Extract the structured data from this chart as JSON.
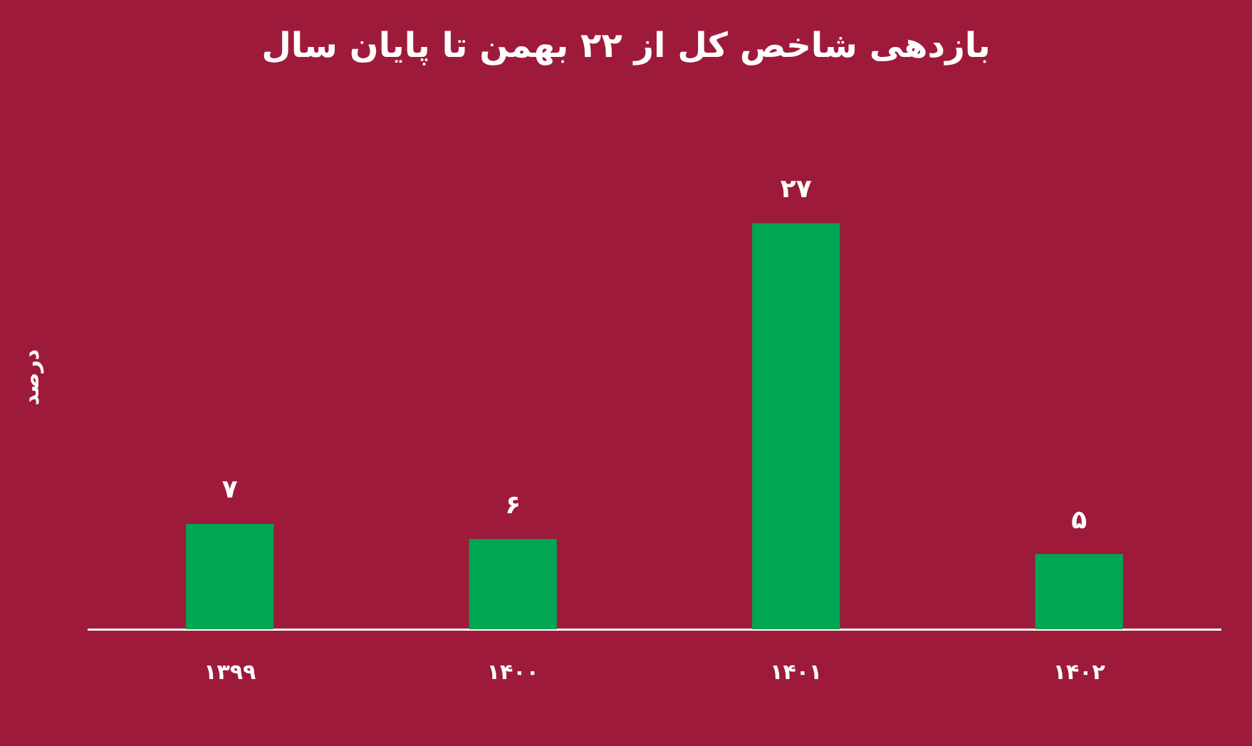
{
  "chart_data": {
    "type": "bar",
    "title": "بازدهی شاخص کل از ۲۲ بهمن تا پایان سال",
    "ylabel": "درصد",
    "categories": [
      "۱۳۹۹",
      "۱۴۰۰",
      "۱۴۰۱",
      "۱۴۰۲"
    ],
    "values": [
      7,
      6,
      27,
      5
    ],
    "value_labels": [
      "۷",
      "۶",
      "۲۷",
      "۵"
    ],
    "color": "#00a651",
    "grid": false,
    "legend": false,
    "tick_labels": "x"
  }
}
